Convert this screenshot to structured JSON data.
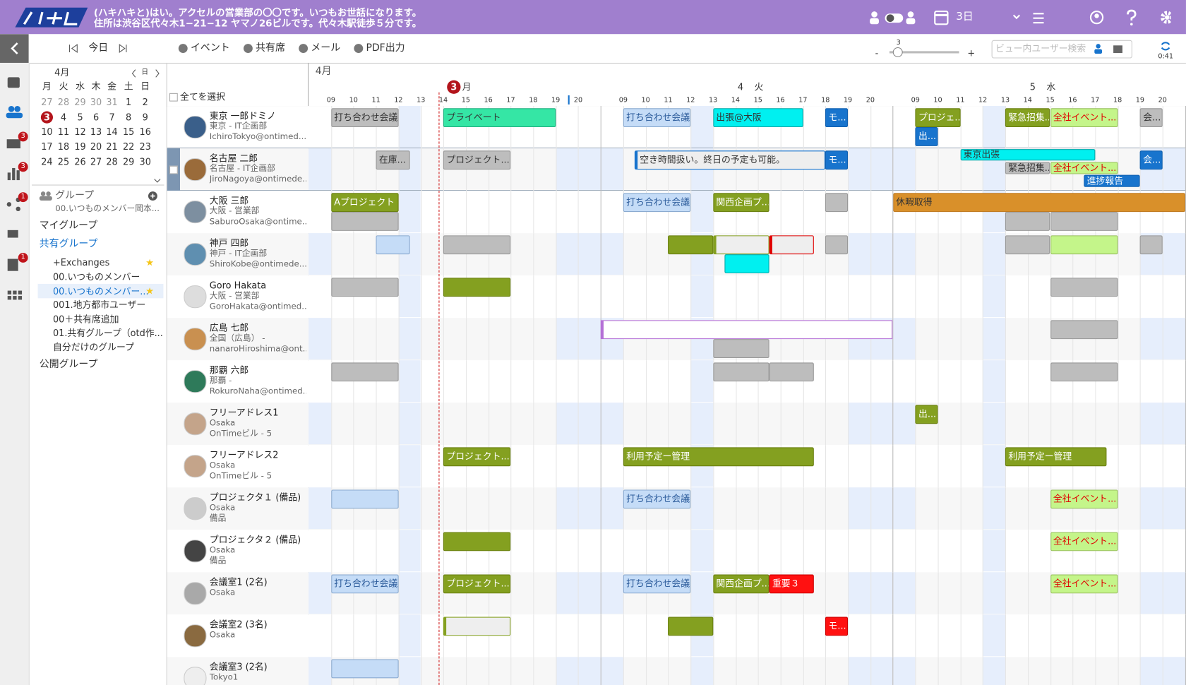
{
  "header": {
    "message_line1": "(ハキハキと)はい。アクセルの営業部の〇〇です。いつもお世話になります。",
    "message_line2": "住所は渋谷区代々木1−21−12 ヤマノ26ビルです。代々木駅徒歩５分です。",
    "view_label": "3日"
  },
  "toolbar": {
    "today": "今日",
    "buttons": [
      "イベント",
      "共有席",
      "メール",
      "PDF出力"
    ],
    "zoom_value": "3",
    "zoom_minus": "-",
    "zoom_plus": "+",
    "search_placeholder": "ビュー内ユーザー検索",
    "clock": "0:41"
  },
  "sidebar_badges": [
    "3",
    "3",
    "1",
    "1"
  ],
  "mini_calendar": {
    "month": "4月",
    "today_label": "日",
    "weekdays": [
      "月",
      "火",
      "水",
      "木",
      "金",
      "土",
      "日"
    ],
    "weeks": [
      [
        27,
        28,
        29,
        30,
        31,
        1,
        2
      ],
      [
        3,
        4,
        5,
        6,
        7,
        8,
        9
      ],
      [
        10,
        11,
        12,
        13,
        14,
        15,
        16
      ],
      [
        17,
        18,
        19,
        20,
        21,
        22,
        23
      ],
      [
        24,
        25,
        26,
        27,
        28,
        29,
        30
      ]
    ]
  },
  "groups": {
    "title": "グループ",
    "current": "00.いつものメンバー岡本...",
    "sections": [
      {
        "label": "マイグループ"
      },
      {
        "label": "共有グループ",
        "items": [
          "+Exchanges",
          "00.いつものメンバー",
          "00.いつものメンバー...",
          "001.地方都市ユーザー",
          "00＋共有席追加",
          "01.共有グループ（otd作...",
          "自分だけのグループ"
        ]
      },
      {
        "label": "公開グループ"
      }
    ]
  },
  "timeline": {
    "month": "4月",
    "select_all": "全てを選択",
    "days": [
      {
        "num": "3",
        "dow": "月"
      },
      {
        "num": "4",
        "dow": "火"
      },
      {
        "num": "5",
        "dow": "水"
      }
    ],
    "hours": [
      "09",
      "10",
      "11",
      "12",
      "13",
      "14",
      "15",
      "16",
      "17",
      "18",
      "19",
      "20"
    ],
    "rows": [
      {
        "lines": [
          "東京 一郎ドミノ",
          "東京 - IT企画部",
          "IchiroTokyo@ontimed..."
        ],
        "events": [
          "打ち合わせ会議",
          "プライベート",
          "打ち合わせ会議",
          "出張@大阪",
          "モ...",
          "プロジェ...",
          "出...",
          "緊急招集...",
          "全社イベント...",
          "会..."
        ]
      },
      {
        "lines": [
          "名古屋 二郎",
          "名古屋 - IT企画部",
          "JiroNagoya@ontimede..."
        ],
        "events": [
          "在庫...",
          "プロジェクト...",
          "空き時間扱い。終日の予定も可能。",
          "モ...",
          "東京出張",
          "緊急招集...",
          "全社イベント...",
          "進捗報告",
          "会..."
        ]
      },
      {
        "lines": [
          "大阪 三郎",
          "大阪 - 営業部",
          "SaburoOsaka@ontime..."
        ],
        "events": [
          "Aプロジェクト",
          "打ち合わせ会議",
          "関西企画プ...",
          "休暇取得"
        ]
      },
      {
        "lines": [
          "神戸 四郎",
          "神戸 - IT企画部",
          "ShiroKobe@ontimede..."
        ]
      },
      {
        "lines": [
          "Goro Hakata",
          "大阪 - 営業部",
          "GoroHakata@ontimed..."
        ]
      },
      {
        "lines": [
          "広島 七郎",
          "全国（広島） -",
          "nanaroHiroshima@ont..."
        ]
      },
      {
        "lines": [
          "那覇 六郎",
          "那覇 -",
          "RokuroNaha@ontimed..."
        ]
      },
      {
        "lines": [
          "フリーアドレス1",
          "Osaka",
          "OnTimeビル - 5"
        ],
        "events": [
          "出..."
        ]
      },
      {
        "lines": [
          "フリーアドレス2",
          "Osaka",
          "OnTimeビル - 5"
        ],
        "events": [
          "プロジェクト...",
          "利用予定ー管理",
          "利用予定ー管理"
        ]
      },
      {
        "lines": [
          "プロジェクタ１ (備品)",
          "Osaka",
          "備品"
        ],
        "events": [
          "打ち合わせ会議",
          "全社イベント..."
        ]
      },
      {
        "lines": [
          "プロジェクタ２ (備品)",
          "Osaka",
          "備品"
        ],
        "events": [
          "全社イベント..."
        ]
      },
      {
        "lines": [
          "会議室1 (2名)",
          "Osaka"
        ],
        "events": [
          "打ち合わせ会議",
          "プロジェクト...",
          "打ち合わせ会議",
          "関西企画プ...",
          "重要３",
          "全社イベント..."
        ]
      },
      {
        "lines": [
          "会議室2 (3名)",
          "Osaka"
        ],
        "events": [
          "モ..."
        ]
      },
      {
        "lines": [
          "会議室3 (2名)",
          "Tokyo1"
        ]
      }
    ]
  }
}
